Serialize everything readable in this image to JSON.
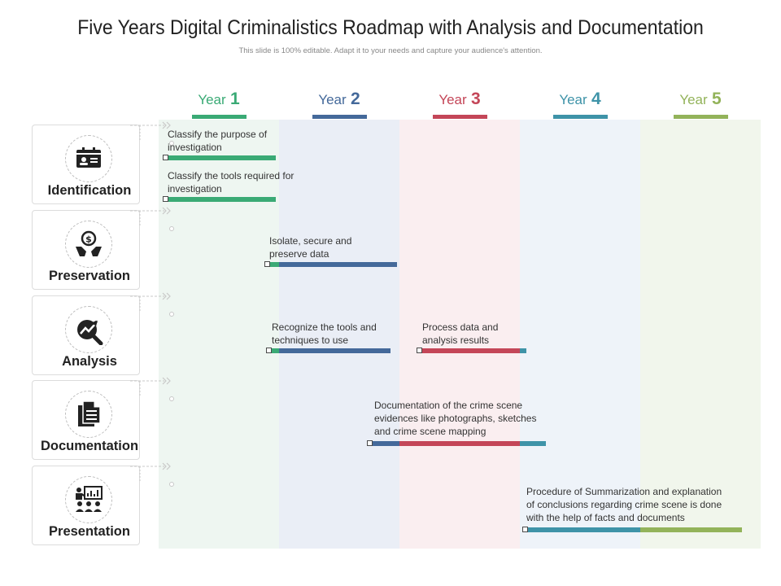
{
  "title": "Five Years Digital Criminalistics Roadmap with Analysis and Documentation",
  "subtitle": "This slide is 100% editable. Adapt it to your needs and capture your audience's attention.",
  "years": [
    {
      "word": "Year",
      "num": "1",
      "color": "#3aaa75",
      "bg": "#eef6f1"
    },
    {
      "word": "Year",
      "num": "2",
      "color": "#44699a",
      "bg": "#eaeef6"
    },
    {
      "word": "Year",
      "num": "3",
      "color": "#c44658",
      "bg": "#faeef0"
    },
    {
      "word": "Year",
      "num": "4",
      "color": "#3e93a8",
      "bg": "#eef3f9"
    },
    {
      "word": "Year",
      "num": "5",
      "color": "#93b35a",
      "bg": "#f1f6ec"
    }
  ],
  "phases": [
    {
      "label": "Identification",
      "icon": "id-card-icon"
    },
    {
      "label": "Preservation",
      "icon": "money-hands-icon"
    },
    {
      "label": "Analysis",
      "icon": "chart-magnifier-icon"
    },
    {
      "label": "Documentation",
      "icon": "documents-icon"
    },
    {
      "label": "Presentation",
      "icon": "presentation-icon"
    }
  ],
  "tasks": [
    {
      "text": "Classify the purpose of investigation"
    },
    {
      "text": "Classify the tools required for investigation"
    },
    {
      "text": "Isolate, secure and preserve data"
    },
    {
      "text": "Recognize the tools and techniques to use"
    },
    {
      "text": "Process data and analysis results"
    },
    {
      "text": "Documentation of the crime scene evidences like photographs, sketches and crime scene mapping"
    },
    {
      "text": "Procedure of Summarization and explanation of conclusions regarding crime scene is done with the help of facts and documents"
    }
  ]
}
